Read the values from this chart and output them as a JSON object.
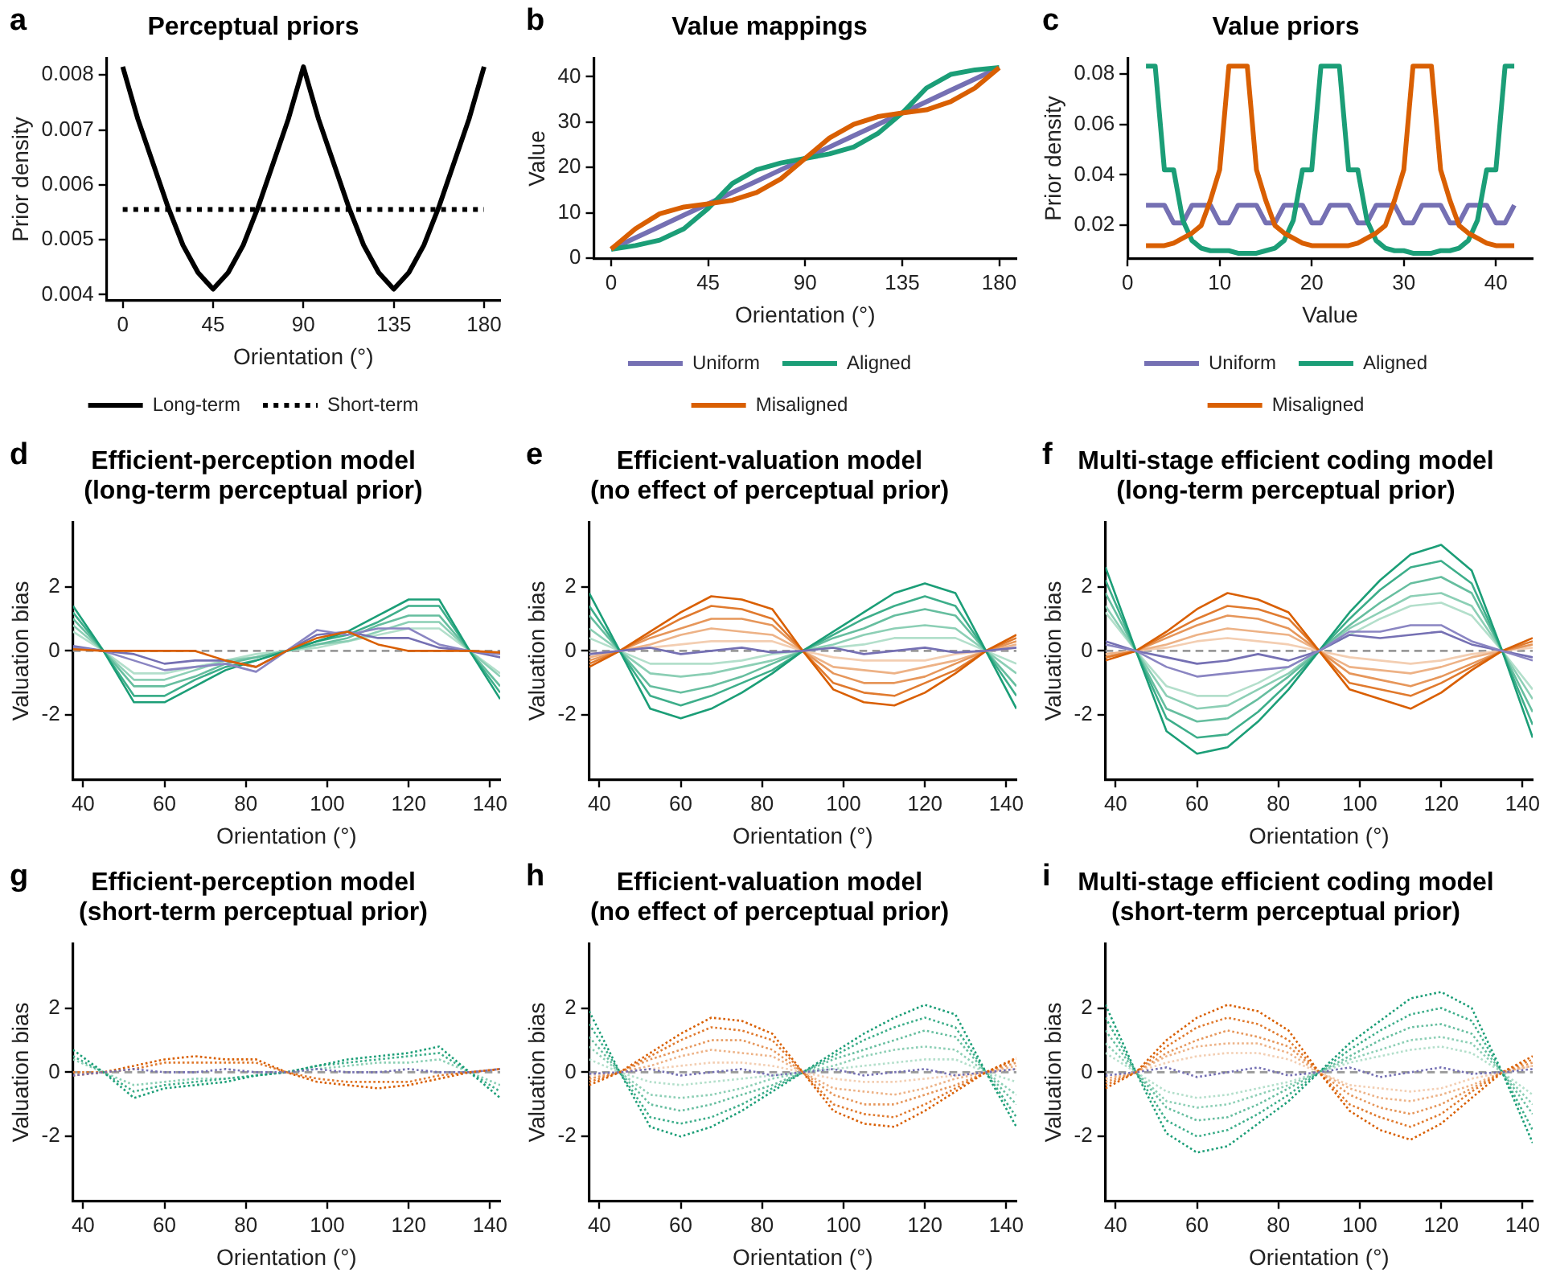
{
  "chart_data": [
    {
      "type": "line",
      "title": "Perceptual priors",
      "xlabel": "Orientation (°)",
      "ylabel": "Prior density",
      "annotations": [
        "a"
      ],
      "xlim": [
        -8,
        188
      ],
      "xticks": [
        0,
        45,
        90,
        135,
        180
      ],
      "ylim": [
        0.0039,
        0.0083
      ],
      "yticks": [
        0.004,
        0.005,
        0.006,
        0.007,
        0.008
      ],
      "grid": false,
      "legend": "bottom",
      "series": [
        {
          "name": "Long-term",
          "color": "#000000",
          "line_style": "solid",
          "x": [
            0,
            7.5,
            15,
            22.5,
            30,
            37.5,
            45,
            52.5,
            60,
            67.5,
            75,
            82.5,
            90,
            97.5,
            105,
            112.5,
            120,
            127.5,
            135,
            142.5,
            150,
            157.5,
            165,
            172.5,
            180
          ],
          "values": [
            0.00815,
            0.0072,
            0.0064,
            0.0056,
            0.0049,
            0.0044,
            0.0041,
            0.0044,
            0.0049,
            0.0056,
            0.0064,
            0.0072,
            0.00815,
            0.0072,
            0.0064,
            0.0056,
            0.0049,
            0.0044,
            0.0041,
            0.0044,
            0.0049,
            0.0056,
            0.0064,
            0.0072,
            0.00815
          ]
        },
        {
          "name": "Short-term",
          "color": "#000000",
          "line_style": "dotted",
          "x": [
            0,
            180
          ],
          "values": [
            0.00555,
            0.00555
          ]
        }
      ]
    },
    {
      "type": "line",
      "title": "Value mappings",
      "xlabel": "Orientation (°)",
      "ylabel": "Value",
      "annotations": [
        "b"
      ],
      "xlim": [
        -8,
        188
      ],
      "xticks": [
        0,
        45,
        90,
        135,
        180
      ],
      "ylim": [
        0,
        44
      ],
      "yticks": [
        0,
        10,
        20,
        30,
        40
      ],
      "grid": false,
      "legend": "bottom",
      "x": [
        0,
        11.25,
        22.5,
        33.75,
        45,
        56.25,
        67.5,
        78.75,
        90,
        101.25,
        112.5,
        123.75,
        135,
        146.25,
        157.5,
        168.75,
        180
      ],
      "series": [
        {
          "name": "Uniform",
          "color": "#7570b3",
          "values": [
            2,
            4.5,
            7,
            9.5,
            12,
            14.5,
            17,
            19.5,
            22,
            24.5,
            27,
            29.5,
            32,
            34.5,
            37,
            39.5,
            42
          ]
        },
        {
          "name": "Aligned",
          "color": "#1b9e77",
          "values": [
            2,
            2.8,
            4,
            6.5,
            11,
            16.5,
            19.5,
            21,
            22,
            23,
            24.5,
            27.5,
            32,
            37.5,
            40.5,
            41.5,
            42
          ]
        },
        {
          "name": "Misaligned",
          "color": "#d95f02",
          "values": [
            2,
            6.5,
            9.8,
            11.3,
            12,
            12.8,
            14.5,
            17.5,
            22,
            26.5,
            29.5,
            31.2,
            32,
            32.7,
            34.5,
            37.5,
            42
          ]
        }
      ]
    },
    {
      "type": "line",
      "title": "Value priors",
      "xlabel": "Value",
      "ylabel": "Prior density",
      "annotations": [
        "c"
      ],
      "xlim": [
        0,
        44
      ],
      "xticks": [
        0,
        10,
        20,
        30,
        40
      ],
      "ylim": [
        0.007,
        0.086
      ],
      "yticks": [
        0.02,
        0.04,
        0.06,
        0.08
      ],
      "grid": false,
      "legend": "bottom",
      "x": [
        2,
        3,
        4,
        5,
        6,
        7,
        8,
        9,
        10,
        11,
        12,
        13,
        14,
        15,
        16,
        17,
        18,
        19,
        20,
        21,
        22,
        23,
        24,
        25,
        26,
        27,
        28,
        29,
        30,
        31,
        32,
        33,
        34,
        35,
        36,
        37,
        38,
        39,
        40,
        41,
        42
      ],
      "series": [
        {
          "name": "Uniform",
          "color": "#7570b3",
          "values": [
            0.028,
            0.028,
            0.028,
            0.021,
            0.021,
            0.028,
            0.028,
            0.028,
            0.021,
            0.021,
            0.028,
            0.028,
            0.028,
            0.021,
            0.021,
            0.028,
            0.028,
            0.028,
            0.021,
            0.021,
            0.028,
            0.028,
            0.028,
            0.021,
            0.021,
            0.028,
            0.028,
            0.028,
            0.021,
            0.021,
            0.028,
            0.028,
            0.028,
            0.021,
            0.021,
            0.028,
            0.028,
            0.028,
            0.021,
            0.021,
            0.028
          ]
        },
        {
          "name": "Aligned",
          "color": "#1b9e77",
          "values": [
            0.083,
            0.083,
            0.042,
            0.042,
            0.022,
            0.014,
            0.011,
            0.01,
            0.01,
            0.01,
            0.009,
            0.009,
            0.009,
            0.01,
            0.011,
            0.014,
            0.022,
            0.042,
            0.042,
            0.083,
            0.083,
            0.083,
            0.042,
            0.042,
            0.022,
            0.014,
            0.011,
            0.01,
            0.01,
            0.009,
            0.009,
            0.009,
            0.01,
            0.01,
            0.011,
            0.014,
            0.022,
            0.042,
            0.042,
            0.083,
            0.083
          ]
        },
        {
          "name": "Misaligned",
          "color": "#d95f02",
          "values": [
            0.012,
            0.012,
            0.012,
            0.013,
            0.015,
            0.017,
            0.02,
            0.03,
            0.042,
            0.083,
            0.083,
            0.083,
            0.042,
            0.03,
            0.02,
            0.017,
            0.015,
            0.013,
            0.012,
            0.012,
            0.012,
            0.012,
            0.012,
            0.013,
            0.015,
            0.017,
            0.02,
            0.03,
            0.042,
            0.083,
            0.083,
            0.083,
            0.042,
            0.03,
            0.02,
            0.017,
            0.015,
            0.013,
            0.012,
            0.012,
            0.012
          ]
        }
      ]
    },
    {
      "type": "line",
      "title": "Efficient-perception model\n(long-term perceptual prior)",
      "xlabel": "Orientation (°)",
      "ylabel": "Valuation bias",
      "annotations": [
        "d"
      ],
      "xlim": [
        37.5,
        142.5
      ],
      "xticks": [
        40,
        60,
        80,
        100,
        120,
        140
      ],
      "ylim": [
        -4,
        4
      ],
      "yticks": [
        -2,
        0,
        2
      ],
      "grid": false,
      "ref_lines": [
        {
          "axis": "y",
          "value": 0,
          "color": "#999999",
          "line_style": "dashed"
        }
      ],
      "x": [
        37.5,
        45,
        52.5,
        60,
        67.5,
        75,
        82.5,
        90,
        97.5,
        105,
        112.5,
        120,
        127.5,
        135,
        142.5
      ],
      "series": [
        {
          "color": "#b3dfcb",
          "values": [
            0.6,
            0,
            -0.7,
            -0.7,
            -0.5,
            -0.3,
            -0.1,
            0,
            0.1,
            0.3,
            0.5,
            0.7,
            0.7,
            0,
            -0.7
          ]
        },
        {
          "color": "#8ccfb5",
          "values": [
            0.8,
            0,
            -0.9,
            -0.9,
            -0.6,
            -0.3,
            -0.2,
            0,
            0.2,
            0.3,
            0.6,
            0.9,
            0.9,
            0,
            -0.8
          ]
        },
        {
          "color": "#66be9f",
          "values": [
            1.0,
            0,
            -1.1,
            -1.1,
            -0.8,
            -0.4,
            -0.2,
            0,
            0.2,
            0.4,
            0.8,
            1.1,
            1.1,
            0,
            -1.1
          ]
        },
        {
          "color": "#3dae8a",
          "values": [
            1.2,
            0,
            -1.4,
            -1.4,
            -0.9,
            -0.5,
            -0.3,
            0,
            0.3,
            0.5,
            0.9,
            1.4,
            1.4,
            0,
            -1.3
          ]
        },
        {
          "color": "#1b9e77",
          "values": [
            1.4,
            0,
            -1.6,
            -1.6,
            -1.1,
            -0.6,
            -0.3,
            0,
            0.3,
            0.6,
            1.1,
            1.6,
            1.6,
            0,
            -1.5
          ]
        },
        {
          "color": "#7570b3",
          "values": [
            0.15,
            0,
            -0.1,
            -0.4,
            -0.3,
            -0.3,
            -0.5,
            0,
            0.5,
            0.6,
            0.4,
            0.4,
            0.1,
            0,
            -0.2
          ]
        },
        {
          "color": "#8a85c2",
          "values": [
            0.1,
            0,
            -0.3,
            -0.6,
            -0.5,
            -0.4,
            -0.65,
            0,
            0.65,
            0.5,
            0.7,
            0.7,
            0.2,
            0,
            -0.1
          ]
        },
        {
          "color": "#d95f02",
          "values": [
            0.05,
            0,
            0,
            0,
            0,
            -0.3,
            -0.5,
            0,
            0.4,
            0.6,
            0.2,
            0,
            0,
            0,
            -0.05
          ]
        }
      ]
    },
    {
      "type": "line",
      "title": "Efficient-valuation model\n(no effect of perceptual prior)",
      "xlabel": "Orientation (°)",
      "ylabel": "Valuation bias",
      "annotations": [
        "e"
      ],
      "xlim": [
        37.5,
        142.5
      ],
      "xticks": [
        40,
        60,
        80,
        100,
        120,
        140
      ],
      "ylim": [
        -4,
        4
      ],
      "yticks": [
        -2,
        0,
        2
      ],
      "grid": false,
      "ref_lines": [
        {
          "axis": "y",
          "value": 0,
          "color": "#999999",
          "line_style": "dashed"
        }
      ],
      "x": [
        37.5,
        45,
        52.5,
        60,
        67.5,
        75,
        82.5,
        90,
        97.5,
        105,
        112.5,
        120,
        127.5,
        135,
        142.5
      ],
      "series": [
        {
          "color": "#b3dfcb",
          "values": [
            0.4,
            0,
            -0.4,
            -0.4,
            -0.4,
            -0.3,
            -0.1,
            0,
            0.1,
            0.2,
            0.4,
            0.4,
            0.4,
            0,
            -0.4
          ]
        },
        {
          "color": "#8ccfb5",
          "values": [
            0.7,
            0,
            -0.7,
            -0.8,
            -0.7,
            -0.5,
            -0.3,
            0,
            0.2,
            0.5,
            0.7,
            0.8,
            0.7,
            0,
            -0.7
          ]
        },
        {
          "color": "#66be9f",
          "values": [
            1.1,
            0,
            -1.1,
            -1.3,
            -1.1,
            -0.8,
            -0.4,
            0,
            0.4,
            0.7,
            1.1,
            1.3,
            1.1,
            0,
            -1.1
          ]
        },
        {
          "color": "#3dae8a",
          "values": [
            1.4,
            0,
            -1.4,
            -1.7,
            -1.4,
            -1.0,
            -0.6,
            0,
            0.5,
            1.0,
            1.4,
            1.7,
            1.4,
            0,
            -1.4
          ]
        },
        {
          "color": "#1b9e77",
          "values": [
            1.8,
            0,
            -1.8,
            -2.1,
            -1.8,
            -1.3,
            -0.7,
            0,
            0.6,
            1.2,
            1.8,
            2.1,
            1.8,
            0,
            -1.8
          ]
        },
        {
          "color": "#f3ceb2",
          "values": [
            -0.1,
            0,
            0.1,
            0.2,
            0.3,
            0.3,
            0.3,
            0,
            -0.2,
            -0.3,
            -0.3,
            -0.3,
            -0.1,
            0,
            0.1
          ]
        },
        {
          "color": "#edb286",
          "values": [
            -0.2,
            0,
            0.2,
            0.5,
            0.7,
            0.6,
            0.5,
            0,
            -0.5,
            -0.6,
            -0.7,
            -0.5,
            -0.3,
            0,
            0.2
          ]
        },
        {
          "color": "#e6965a",
          "values": [
            -0.3,
            0,
            0.4,
            0.7,
            1.0,
            1.0,
            0.8,
            0,
            -0.7,
            -1.0,
            -1.0,
            -0.8,
            -0.4,
            0,
            0.3
          ]
        },
        {
          "color": "#e07a2e",
          "values": [
            -0.4,
            0,
            0.5,
            1.0,
            1.4,
            1.3,
            1.0,
            0,
            -1.0,
            -1.3,
            -1.4,
            -1.0,
            -0.6,
            0,
            0.4
          ]
        },
        {
          "color": "#d95f02",
          "values": [
            -0.5,
            0,
            0.6,
            1.2,
            1.7,
            1.6,
            1.3,
            0,
            -1.2,
            -1.6,
            -1.7,
            -1.3,
            -0.7,
            0,
            0.5
          ]
        },
        {
          "color": "#7570b3",
          "values": [
            -0.1,
            0,
            0.1,
            -0.1,
            0,
            0.1,
            -0.05,
            0,
            0.1,
            -0.1,
            0,
            0.1,
            -0.05,
            0,
            0.1
          ]
        }
      ]
    },
    {
      "type": "line",
      "title": "Multi-stage efficient coding model\n(long-term perceptual prior)",
      "xlabel": "Orientation (°)",
      "ylabel": "Valuation bias",
      "annotations": [
        "f"
      ],
      "xlim": [
        37.5,
        142.5
      ],
      "xticks": [
        40,
        60,
        80,
        100,
        120,
        140
      ],
      "ylim": [
        -4,
        4
      ],
      "yticks": [
        -2,
        0,
        2
      ],
      "grid": false,
      "ref_lines": [
        {
          "axis": "y",
          "value": 0,
          "color": "#999999",
          "line_style": "dashed"
        }
      ],
      "x": [
        37.5,
        45,
        52.5,
        60,
        67.5,
        75,
        82.5,
        90,
        97.5,
        105,
        112.5,
        120,
        127.5,
        135,
        142.5
      ],
      "series": [
        {
          "color": "#b3dfcb",
          "values": [
            1.2,
            0,
            -1.1,
            -1.4,
            -1.4,
            -1.0,
            -0.5,
            0,
            0.5,
            1.0,
            1.4,
            1.5,
            1.1,
            0,
            -1.2
          ]
        },
        {
          "color": "#8ccfb5",
          "values": [
            1.4,
            0,
            -1.4,
            -1.8,
            -1.7,
            -1.2,
            -0.7,
            0,
            0.7,
            1.2,
            1.7,
            1.8,
            1.4,
            0,
            -1.5
          ]
        },
        {
          "color": "#66be9f",
          "values": [
            1.8,
            0,
            -1.8,
            -2.2,
            -2.1,
            -1.5,
            -0.8,
            0,
            0.8,
            1.5,
            2.1,
            2.3,
            1.8,
            0,
            -1.9
          ]
        },
        {
          "color": "#3dae8a",
          "values": [
            2.2,
            0,
            -2.1,
            -2.7,
            -2.6,
            -1.9,
            -1.0,
            0,
            1.0,
            1.9,
            2.6,
            2.8,
            2.1,
            0,
            -2.3
          ]
        },
        {
          "color": "#1b9e77",
          "values": [
            2.6,
            0,
            -2.5,
            -3.2,
            -3.0,
            -2.2,
            -1.2,
            0,
            1.2,
            2.2,
            3.0,
            3.3,
            2.5,
            0,
            -2.7
          ]
        },
        {
          "color": "#f3ceb2",
          "values": [
            -0.1,
            0,
            0.1,
            0.3,
            0.4,
            0.3,
            0.2,
            0,
            -0.2,
            -0.3,
            -0.4,
            -0.3,
            -0.1,
            0,
            0.1
          ]
        },
        {
          "color": "#edb286",
          "values": [
            -0.1,
            0,
            0.2,
            0.5,
            0.7,
            0.6,
            0.5,
            0,
            -0.5,
            -0.6,
            -0.7,
            -0.5,
            -0.2,
            0,
            0.2
          ]
        },
        {
          "color": "#e6965a",
          "values": [
            -0.2,
            0,
            0.4,
            0.8,
            1.1,
            1.0,
            0.7,
            0,
            -0.7,
            -0.9,
            -1.1,
            -0.8,
            -0.4,
            0,
            0.2
          ]
        },
        {
          "color": "#e07a2e",
          "values": [
            -0.2,
            0,
            0.5,
            1.0,
            1.4,
            1.3,
            1.0,
            0,
            -1.0,
            -1.2,
            -1.4,
            -1.0,
            -0.5,
            0,
            0.3
          ]
        },
        {
          "color": "#d95f02",
          "values": [
            -0.3,
            0,
            0.6,
            1.3,
            1.8,
            1.6,
            1.2,
            0,
            -1.2,
            -1.5,
            -1.8,
            -1.3,
            -0.6,
            0,
            0.4
          ]
        },
        {
          "color": "#7570b3",
          "values": [
            0.3,
            0,
            -0.2,
            -0.4,
            -0.3,
            -0.1,
            -0.3,
            0,
            0.5,
            0.4,
            0.5,
            0.6,
            0.2,
            0,
            -0.2
          ]
        },
        {
          "color": "#8a85c2",
          "values": [
            0.2,
            0,
            -0.5,
            -0.8,
            -0.7,
            -0.6,
            -0.5,
            0,
            0.6,
            0.6,
            0.8,
            0.8,
            0.3,
            0,
            -0.3
          ]
        }
      ]
    },
    {
      "type": "line",
      "title": "Efficient-perception model\n(short-term perceptual prior)",
      "xlabel": "Orientation (°)",
      "ylabel": "Valuation bias",
      "annotations": [
        "g"
      ],
      "xlim": [
        37.5,
        142.5
      ],
      "xticks": [
        40,
        60,
        80,
        100,
        120,
        140
      ],
      "ylim": [
        -4,
        4
      ],
      "yticks": [
        -2,
        0,
        2
      ],
      "grid": false,
      "line_style": "dotted",
      "ref_lines": [
        {
          "axis": "y",
          "value": 0,
          "color": "#999999",
          "line_style": "dashed"
        }
      ],
      "x": [
        37.5,
        45,
        52.5,
        60,
        67.5,
        75,
        82.5,
        90,
        97.5,
        105,
        112.5,
        120,
        127.5,
        135,
        142.5
      ],
      "series": [
        {
          "color": "#8ccfb5",
          "values": [
            0.4,
            0,
            -0.4,
            -0.3,
            -0.2,
            -0.2,
            -0.1,
            0,
            0.1,
            0.2,
            0.3,
            0.3,
            0.4,
            0,
            -0.4
          ]
        },
        {
          "color": "#3dae8a",
          "values": [
            0.5,
            0,
            -0.6,
            -0.4,
            -0.3,
            -0.2,
            -0.1,
            0,
            0.2,
            0.3,
            0.4,
            0.5,
            0.6,
            0,
            -0.6
          ]
        },
        {
          "color": "#1b9e77",
          "values": [
            0.7,
            0,
            -0.8,
            -0.5,
            -0.4,
            -0.3,
            -0.1,
            0,
            0.2,
            0.4,
            0.5,
            0.6,
            0.8,
            0,
            -0.8
          ]
        },
        {
          "color": "#e07a2e",
          "values": [
            0,
            0,
            0.1,
            0.3,
            0.3,
            0.3,
            0.3,
            0,
            -0.2,
            -0.3,
            -0.3,
            -0.3,
            -0.1,
            0,
            0.1
          ]
        },
        {
          "color": "#d95f02",
          "values": [
            -0.1,
            0,
            0.2,
            0.4,
            0.5,
            0.4,
            0.4,
            0,
            -0.3,
            -0.4,
            -0.5,
            -0.4,
            -0.2,
            0,
            0.1
          ]
        },
        {
          "color": "#7570b3",
          "values": [
            -0.1,
            0,
            0.1,
            0,
            0,
            0.1,
            0,
            0,
            0.1,
            0,
            0,
            0.1,
            0,
            0,
            0.1
          ]
        }
      ]
    },
    {
      "type": "line",
      "title": "Efficient-valuation model\n(no effect of perceptual prior)",
      "xlabel": "Orientation (°)",
      "ylabel": "Valuation bias",
      "annotations": [
        "h"
      ],
      "xlim": [
        37.5,
        142.5
      ],
      "xticks": [
        40,
        60,
        80,
        100,
        120,
        140
      ],
      "ylim": [
        -4,
        4
      ],
      "yticks": [
        -2,
        0,
        2
      ],
      "grid": false,
      "line_style": "dotted",
      "ref_lines": [
        {
          "axis": "y",
          "value": 0,
          "color": "#999999",
          "line_style": "dashed"
        }
      ],
      "x": [
        37.5,
        45,
        52.5,
        60,
        67.5,
        75,
        82.5,
        90,
        97.5,
        105,
        112.5,
        120,
        127.5,
        135,
        142.5
      ],
      "series": [
        {
          "color": "#b3dfcb",
          "values": [
            0.4,
            0,
            -0.3,
            -0.4,
            -0.3,
            -0.2,
            -0.1,
            0,
            0.1,
            0.2,
            0.3,
            0.4,
            0.4,
            0,
            -0.3
          ]
        },
        {
          "color": "#8ccfb5",
          "values": [
            0.8,
            0,
            -0.7,
            -0.8,
            -0.7,
            -0.5,
            -0.2,
            0,
            0.2,
            0.5,
            0.7,
            0.8,
            0.7,
            0,
            -0.7
          ]
        },
        {
          "color": "#66be9f",
          "values": [
            1.1,
            0,
            -1.0,
            -1.2,
            -1.0,
            -0.7,
            -0.4,
            0,
            0.4,
            0.7,
            1.0,
            1.3,
            1.1,
            0,
            -1.0
          ]
        },
        {
          "color": "#3dae8a",
          "values": [
            1.5,
            0,
            -1.4,
            -1.6,
            -1.4,
            -1.0,
            -0.5,
            0,
            0.5,
            1.0,
            1.4,
            1.7,
            1.4,
            0,
            -1.4
          ]
        },
        {
          "color": "#1b9e77",
          "values": [
            1.9,
            0,
            -1.7,
            -2.0,
            -1.7,
            -1.2,
            -0.6,
            0,
            0.6,
            1.2,
            1.7,
            2.1,
            1.8,
            0,
            -1.7
          ]
        },
        {
          "color": "#f3ceb2",
          "values": [
            -0.1,
            0,
            0.1,
            0.2,
            0.3,
            0.3,
            0.2,
            0,
            -0.2,
            -0.3,
            -0.3,
            -0.2,
            -0.1,
            0,
            0.1
          ]
        },
        {
          "color": "#edb286",
          "values": [
            -0.2,
            0,
            0.2,
            0.5,
            0.7,
            0.6,
            0.5,
            0,
            -0.5,
            -0.6,
            -0.7,
            -0.5,
            -0.2,
            0,
            0.2
          ]
        },
        {
          "color": "#e6965a",
          "values": [
            -0.2,
            0,
            0.4,
            0.7,
            1.0,
            1.0,
            0.7,
            0,
            -0.7,
            -1.0,
            -1.0,
            -0.7,
            -0.4,
            0,
            0.3
          ]
        },
        {
          "color": "#e07a2e",
          "values": [
            -0.3,
            0,
            0.5,
            1.0,
            1.4,
            1.3,
            1.0,
            0,
            -1.0,
            -1.3,
            -1.4,
            -1.0,
            -0.5,
            0,
            0.4
          ]
        },
        {
          "color": "#d95f02",
          "values": [
            -0.4,
            0,
            0.6,
            1.2,
            1.7,
            1.6,
            1.2,
            0,
            -1.2,
            -1.6,
            -1.7,
            -1.2,
            -0.6,
            0,
            0.45
          ]
        },
        {
          "color": "#7570b3",
          "values": [
            -0.05,
            0,
            0.1,
            -0.1,
            0,
            0.1,
            -0.1,
            0,
            0.1,
            -0.1,
            0,
            0.1,
            -0.1,
            0,
            0.1
          ]
        }
      ]
    },
    {
      "type": "line",
      "title": "Multi-stage efficient coding model\n(short-term perceptual prior)",
      "xlabel": "Orientation (°)",
      "ylabel": "Valuation bias",
      "annotations": [
        "i"
      ],
      "xlim": [
        37.5,
        142.5
      ],
      "xticks": [
        40,
        60,
        80,
        100,
        120,
        140
      ],
      "ylim": [
        -4,
        4
      ],
      "yticks": [
        -2,
        0,
        2
      ],
      "grid": false,
      "line_style": "dotted",
      "ref_lines": [
        {
          "axis": "y",
          "value": 0,
          "color": "#999999",
          "line_style": "dashed"
        }
      ],
      "x": [
        37.5,
        45,
        52.5,
        60,
        67.5,
        75,
        82.5,
        90,
        97.5,
        105,
        112.5,
        120,
        127.5,
        135,
        142.5
      ],
      "series": [
        {
          "color": "#b3dfcb",
          "values": [
            0.6,
            0,
            -0.6,
            -0.8,
            -0.7,
            -0.5,
            -0.3,
            0,
            0.3,
            0.5,
            0.7,
            0.8,
            0.6,
            0,
            -0.7
          ]
        },
        {
          "color": "#8ccfb5",
          "values": [
            0.9,
            0,
            -0.9,
            -1.1,
            -1.0,
            -0.7,
            -0.4,
            0,
            0.4,
            0.7,
            1.0,
            1.1,
            0.9,
            0,
            -1.0
          ]
        },
        {
          "color": "#66be9f",
          "values": [
            1.3,
            0,
            -1.1,
            -1.5,
            -1.4,
            -1.0,
            -0.5,
            0,
            0.5,
            1.0,
            1.4,
            1.5,
            1.2,
            0,
            -1.3
          ]
        },
        {
          "color": "#3dae8a",
          "values": [
            1.7,
            0,
            -1.5,
            -2.0,
            -1.8,
            -1.3,
            -0.7,
            0,
            0.7,
            1.3,
            1.8,
            2.0,
            1.6,
            0,
            -1.8
          ]
        },
        {
          "color": "#1b9e77",
          "values": [
            2.1,
            0,
            -1.9,
            -2.5,
            -2.3,
            -1.6,
            -0.9,
            0,
            0.9,
            1.6,
            2.3,
            2.5,
            2.0,
            0,
            -2.2
          ]
        },
        {
          "color": "#f3ceb2",
          "values": [
            -0.2,
            0,
            0.3,
            0.5,
            0.6,
            0.6,
            0.4,
            0,
            -0.4,
            -0.5,
            -0.6,
            -0.5,
            -0.2,
            0,
            0.2
          ]
        },
        {
          "color": "#edb286",
          "values": [
            -0.2,
            0,
            0.5,
            0.8,
            0.9,
            0.9,
            0.6,
            0,
            -0.5,
            -0.8,
            -0.9,
            -0.7,
            -0.4,
            0,
            0.2
          ]
        },
        {
          "color": "#e6965a",
          "values": [
            -0.3,
            0,
            0.6,
            1.0,
            1.3,
            1.1,
            0.8,
            0,
            -0.7,
            -1.1,
            -1.3,
            -1.0,
            -0.5,
            0,
            0.3
          ]
        },
        {
          "color": "#e07a2e",
          "values": [
            -0.4,
            0,
            0.8,
            1.4,
            1.7,
            1.5,
            1.0,
            0,
            -1.0,
            -1.4,
            -1.7,
            -1.3,
            -0.6,
            0,
            0.4
          ]
        },
        {
          "color": "#d95f02",
          "values": [
            -0.5,
            0,
            1.0,
            1.7,
            2.1,
            1.9,
            1.3,
            0,
            -1.2,
            -1.8,
            -2.1,
            -1.6,
            -0.8,
            0,
            0.5
          ]
        },
        {
          "color": "#7570b3",
          "values": [
            -0.1,
            0,
            0.15,
            -0.15,
            0,
            0.15,
            -0.1,
            0,
            0.15,
            -0.15,
            0,
            0.15,
            -0.05,
            0,
            0.1
          ]
        }
      ]
    }
  ]
}
